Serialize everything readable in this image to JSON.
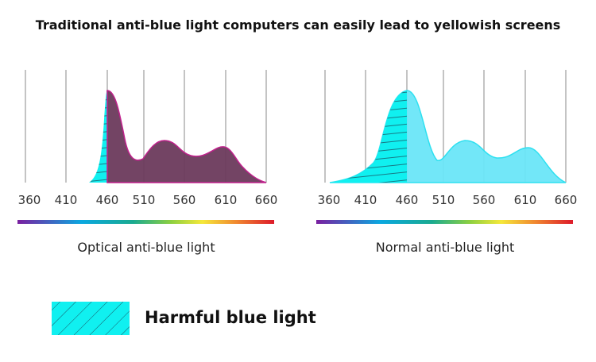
{
  "title": "Traditional anti-blue light computers can easily lead to yellowish screens",
  "ticks": [
    "360",
    "410",
    "460",
    "510",
    "560",
    "610",
    "660"
  ],
  "left_chart": {
    "caption": "Optical anti-blue light",
    "fill": "#6b3a5c",
    "stroke": "#c0218c"
  },
  "right_chart": {
    "caption": "Normal anti-blue light",
    "fill": "#6ae6f8",
    "stroke": "#2ee0f0"
  },
  "legend": {
    "label": "Harmful blue light",
    "color": "#10f0f0"
  }
}
